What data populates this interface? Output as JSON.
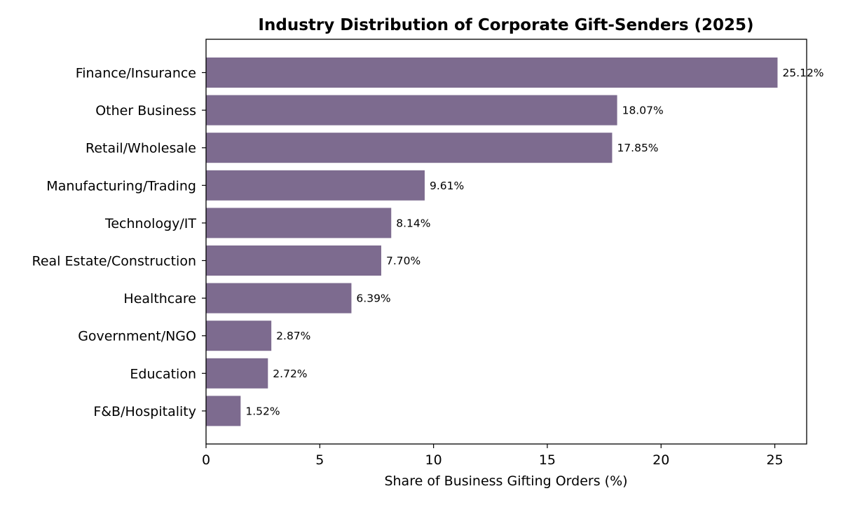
{
  "chart_data": {
    "type": "bar",
    "orientation": "horizontal",
    "title": "Industry Distribution of Corporate Gift-Senders (2025)",
    "xlabel": "Share of Business Gifting Orders (%)",
    "ylabel": "",
    "xlim": [
      0,
      26.4
    ],
    "xticks": [
      0,
      5,
      10,
      15,
      20,
      25
    ],
    "xtick_labels": [
      "0",
      "5",
      "10",
      "15",
      "20",
      "25"
    ],
    "grid": false,
    "legend": "none",
    "bar_color": "#7d6b8f",
    "categories": [
      "Finance/Insurance",
      "Other Business",
      "Retail/Wholesale",
      "Manufacturing/Trading",
      "Technology/IT",
      "Real Estate/Construction",
      "Healthcare",
      "Government/NGO",
      "Education",
      "F&B/Hospitality"
    ],
    "values": [
      25.12,
      18.07,
      17.85,
      9.61,
      8.14,
      7.7,
      6.39,
      2.87,
      2.72,
      1.52
    ],
    "value_labels": [
      "25.12%",
      "18.07%",
      "17.85%",
      "9.61%",
      "8.14%",
      "7.70%",
      "6.39%",
      "2.87%",
      "2.72%",
      "1.52%"
    ]
  }
}
